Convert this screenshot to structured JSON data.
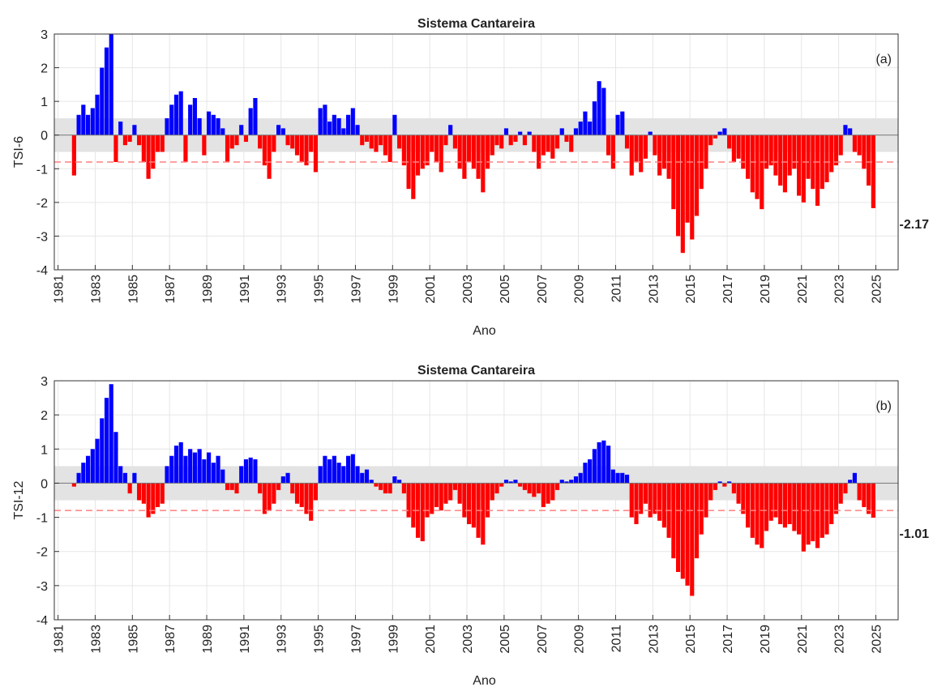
{
  "chart_data": [
    {
      "type": "bar",
      "title": "Sistema Cantareira",
      "ylabel": "TSI-6",
      "xlabel": "Ano",
      "panel_label": "(a)",
      "end_label": "-2.17",
      "positive_color": "#0000ff",
      "negative_color": "#ff0000",
      "band_color": "#e3e3e3",
      "threshold_color": "#ff8080",
      "neutral_band": [
        -0.5,
        0.5
      ],
      "threshold": -0.8,
      "grid": true,
      "xlim": [
        1980.8,
        2026.2
      ],
      "xticks": [
        1981,
        1983,
        1985,
        1987,
        1989,
        1991,
        1993,
        1995,
        1997,
        1999,
        2001,
        2003,
        2005,
        2007,
        2009,
        2011,
        2013,
        2015,
        2017,
        2019,
        2021,
        2023,
        2025
      ],
      "ylim": [
        -4,
        3
      ],
      "yticks": [
        -4,
        -3,
        -2,
        -1,
        0,
        1,
        2,
        3
      ],
      "x": [
        1981.75,
        1982,
        1982.25,
        1982.5,
        1982.75,
        1983,
        1983.25,
        1983.5,
        1983.75,
        1984,
        1984.25,
        1984.5,
        1984.75,
        1985,
        1985.25,
        1985.5,
        1985.75,
        1986,
        1986.25,
        1986.5,
        1986.75,
        1987,
        1987.25,
        1987.5,
        1987.75,
        1988,
        1988.25,
        1988.5,
        1988.75,
        1989,
        1989.25,
        1989.5,
        1989.75,
        1990,
        1990.25,
        1990.5,
        1990.75,
        1991,
        1991.25,
        1991.5,
        1991.75,
        1992,
        1992.25,
        1992.5,
        1992.75,
        1993,
        1993.25,
        1993.5,
        1993.75,
        1994,
        1994.25,
        1994.5,
        1994.75,
        1995,
        1995.25,
        1995.5,
        1995.75,
        1996,
        1996.25,
        1996.5,
        1996.75,
        1997,
        1997.25,
        1997.5,
        1997.75,
        1998,
        1998.25,
        1998.5,
        1998.75,
        1999,
        1999.25,
        1999.5,
        1999.75,
        2000,
        2000.25,
        2000.5,
        2000.75,
        2001,
        2001.25,
        2001.5,
        2001.75,
        2002,
        2002.25,
        2002.5,
        2002.75,
        2003,
        2003.25,
        2003.5,
        2003.75,
        2004,
        2004.25,
        2004.5,
        2004.75,
        2005,
        2005.25,
        2005.5,
        2005.75,
        2006,
        2006.25,
        2006.5,
        2006.75,
        2007,
        2007.25,
        2007.5,
        2007.75,
        2008,
        2008.25,
        2008.5,
        2008.75,
        2009,
        2009.25,
        2009.5,
        2009.75,
        2010,
        2010.25,
        2010.5,
        2010.75,
        2011,
        2011.25,
        2011.5,
        2011.75,
        2012,
        2012.25,
        2012.5,
        2012.75,
        2013,
        2013.25,
        2013.5,
        2013.75,
        2014,
        2014.25,
        2014.5,
        2014.75,
        2015,
        2015.25,
        2015.5,
        2015.75,
        2016,
        2016.25,
        2016.5,
        2016.75,
        2017,
        2017.25,
        2017.5,
        2017.75,
        2018,
        2018.25,
        2018.5,
        2018.75,
        2019,
        2019.25,
        2019.5,
        2019.75,
        2020,
        2020.25,
        2020.5,
        2020.75,
        2021,
        2021.25,
        2021.5,
        2021.75,
        2022,
        2022.25,
        2022.5,
        2022.75,
        2023,
        2023.25,
        2023.5,
        2023.75,
        2024,
        2024.25,
        2024.5,
        2024.75
      ],
      "values": [
        -1.2,
        0.6,
        0.9,
        0.6,
        0.8,
        1.2,
        2.0,
        2.6,
        3.0,
        -0.8,
        0.4,
        -0.3,
        -0.2,
        0.3,
        -0.3,
        -0.8,
        -1.3,
        -1.0,
        -0.5,
        -0.5,
        0.5,
        0.9,
        1.2,
        1.3,
        -0.8,
        0.9,
        1.1,
        0.5,
        -0.6,
        0.7,
        0.6,
        0.5,
        0.2,
        -0.8,
        -0.4,
        -0.3,
        0.3,
        -0.2,
        0.8,
        1.1,
        -0.4,
        -0.9,
        -1.3,
        -0.5,
        0.3,
        0.2,
        -0.3,
        -0.4,
        -0.6,
        -0.8,
        -0.9,
        -0.5,
        -1.1,
        0.8,
        0.9,
        0.4,
        0.6,
        0.5,
        0.2,
        0.6,
        0.8,
        0.3,
        -0.3,
        -0.2,
        -0.4,
        -0.5,
        -0.3,
        -0.6,
        -0.8,
        0.6,
        -0.4,
        -0.9,
        -1.6,
        -1.9,
        -1.2,
        -1.0,
        -0.9,
        -0.5,
        -0.8,
        -1.1,
        -0.3,
        0.3,
        -0.4,
        -1.0,
        -1.3,
        -0.8,
        -1.0,
        -1.3,
        -1.7,
        -1.0,
        -0.6,
        -0.3,
        -0.4,
        0.2,
        -0.3,
        -0.2,
        0.1,
        -0.3,
        0.1,
        -0.5,
        -1.0,
        -0.6,
        -0.5,
        -0.7,
        -0.4,
        0.2,
        -0.2,
        -0.5,
        0.2,
        0.4,
        0.7,
        0.4,
        1.0,
        1.6,
        1.4,
        -0.6,
        -1.0,
        0.6,
        0.7,
        -0.4,
        -1.2,
        -0.8,
        -1.1,
        -0.7,
        0.1,
        -0.6,
        -1.2,
        -1.0,
        -1.3,
        -2.2,
        -3.0,
        -3.5,
        -2.6,
        -3.1,
        -2.4,
        -1.6,
        -1.0,
        -0.3,
        -0.1,
        0.1,
        0.2,
        -0.4,
        -0.8,
        -0.7,
        -1.0,
        -1.3,
        -1.7,
        -1.9,
        -2.2,
        -1.0,
        -0.9,
        -1.2,
        -1.5,
        -1.7,
        -1.2,
        -1.0,
        -1.8,
        -2.0,
        -1.3,
        -1.6,
        -2.1,
        -1.6,
        -1.4,
        -1.1,
        -0.9,
        -0.6,
        0.3,
        0.2,
        -0.5,
        -0.6,
        -1.0,
        -1.5,
        -2.17
      ]
    },
    {
      "type": "bar",
      "title": "Sistema Cantareira",
      "ylabel": "TSI-12",
      "xlabel": "Ano",
      "panel_label": "(b)",
      "end_label": "-1.01",
      "positive_color": "#0000ff",
      "negative_color": "#ff0000",
      "band_color": "#e3e3e3",
      "threshold_color": "#ff8080",
      "neutral_band": [
        -0.5,
        0.5
      ],
      "threshold": -0.8,
      "grid": true,
      "xlim": [
        1980.8,
        2026.2
      ],
      "xticks": [
        1981,
        1983,
        1985,
        1987,
        1989,
        1991,
        1993,
        1995,
        1997,
        1999,
        2001,
        2003,
        2005,
        2007,
        2009,
        2011,
        2013,
        2015,
        2017,
        2019,
        2021,
        2023,
        2025
      ],
      "ylim": [
        -4,
        3
      ],
      "yticks": [
        -4,
        -3,
        -2,
        -1,
        0,
        1,
        2,
        3
      ],
      "x": [
        1981.75,
        1982,
        1982.25,
        1982.5,
        1982.75,
        1983,
        1983.25,
        1983.5,
        1983.75,
        1984,
        1984.25,
        1984.5,
        1984.75,
        1985,
        1985.25,
        1985.5,
        1985.75,
        1986,
        1986.25,
        1986.5,
        1986.75,
        1987,
        1987.25,
        1987.5,
        1987.75,
        1988,
        1988.25,
        1988.5,
        1988.75,
        1989,
        1989.25,
        1989.5,
        1989.75,
        1990,
        1990.25,
        1990.5,
        1990.75,
        1991,
        1991.25,
        1991.5,
        1991.75,
        1992,
        1992.25,
        1992.5,
        1992.75,
        1993,
        1993.25,
        1993.5,
        1993.75,
        1994,
        1994.25,
        1994.5,
        1994.75,
        1995,
        1995.25,
        1995.5,
        1995.75,
        1996,
        1996.25,
        1996.5,
        1996.75,
        1997,
        1997.25,
        1997.5,
        1997.75,
        1998,
        1998.25,
        1998.5,
        1998.75,
        1999,
        1999.25,
        1999.5,
        1999.75,
        2000,
        2000.25,
        2000.5,
        2000.75,
        2001,
        2001.25,
        2001.5,
        2001.75,
        2002,
        2002.25,
        2002.5,
        2002.75,
        2003,
        2003.25,
        2003.5,
        2003.75,
        2004,
        2004.25,
        2004.5,
        2004.75,
        2005,
        2005.25,
        2005.5,
        2005.75,
        2006,
        2006.25,
        2006.5,
        2006.75,
        2007,
        2007.25,
        2007.5,
        2007.75,
        2008,
        2008.25,
        2008.5,
        2008.75,
        2009,
        2009.25,
        2009.5,
        2009.75,
        2010,
        2010.25,
        2010.5,
        2010.75,
        2011,
        2011.25,
        2011.5,
        2011.75,
        2012,
        2012.25,
        2012.5,
        2012.75,
        2013,
        2013.25,
        2013.5,
        2013.75,
        2014,
        2014.25,
        2014.5,
        2014.75,
        2015,
        2015.25,
        2015.5,
        2015.75,
        2016,
        2016.25,
        2016.5,
        2016.75,
        2017,
        2017.25,
        2017.5,
        2017.75,
        2018,
        2018.25,
        2018.5,
        2018.75,
        2019,
        2019.25,
        2019.5,
        2019.75,
        2020,
        2020.25,
        2020.5,
        2020.75,
        2021,
        2021.25,
        2021.5,
        2021.75,
        2022,
        2022.25,
        2022.5,
        2022.75,
        2023,
        2023.25,
        2023.5,
        2023.75,
        2024,
        2024.25,
        2024.5,
        2024.75
      ],
      "values": [
        -0.1,
        0.3,
        0.6,
        0.8,
        1.0,
        1.3,
        1.9,
        2.5,
        2.9,
        1.5,
        0.5,
        0.3,
        -0.3,
        0.3,
        -0.5,
        -0.6,
        -1.0,
        -0.9,
        -0.7,
        -0.6,
        0.5,
        0.8,
        1.1,
        1.2,
        0.8,
        1.0,
        0.9,
        1.0,
        0.7,
        0.9,
        0.6,
        0.8,
        0.4,
        -0.2,
        -0.2,
        -0.3,
        0.5,
        0.7,
        0.75,
        0.7,
        -0.3,
        -0.9,
        -0.8,
        -0.6,
        -0.2,
        0.2,
        0.3,
        -0.3,
        -0.6,
        -0.7,
        -0.9,
        -1.1,
        -0.5,
        0.5,
        0.8,
        0.7,
        0.8,
        0.6,
        0.5,
        0.8,
        0.85,
        0.5,
        0.3,
        0.4,
        0.1,
        -0.1,
        -0.2,
        -0.3,
        -0.3,
        0.2,
        0.1,
        -0.3,
        -1.0,
        -1.3,
        -1.6,
        -1.7,
        -1.0,
        -0.9,
        -0.7,
        -0.8,
        -0.6,
        -0.5,
        -0.2,
        -0.6,
        -1.0,
        -1.2,
        -1.3,
        -1.6,
        -1.8,
        -1.0,
        -0.5,
        -0.3,
        -0.1,
        0.1,
        0.05,
        0.1,
        -0.1,
        -0.2,
        -0.3,
        -0.4,
        -0.3,
        -0.7,
        -0.6,
        -0.5,
        -0.2,
        0.1,
        0.05,
        0.1,
        0.2,
        0.3,
        0.6,
        0.7,
        1.0,
        1.2,
        1.25,
        1.1,
        0.4,
        0.3,
        0.3,
        0.25,
        -1.0,
        -1.2,
        -0.9,
        -0.6,
        -1.0,
        -0.9,
        -1.1,
        -1.3,
        -1.6,
        -2.2,
        -2.6,
        -2.8,
        -3.0,
        -3.3,
        -2.2,
        -1.5,
        -1.0,
        -0.5,
        -0.2,
        0.05,
        -0.1,
        0.05,
        -0.3,
        -0.6,
        -0.9,
        -1.3,
        -1.6,
        -1.8,
        -1.9,
        -1.4,
        -1.1,
        -1.0,
        -1.2,
        -1.3,
        -1.2,
        -1.4,
        -1.5,
        -2.0,
        -1.8,
        -1.7,
        -1.9,
        -1.6,
        -1.5,
        -1.2,
        -0.9,
        -0.6,
        -0.3,
        0.1,
        0.3,
        -0.5,
        -0.7,
        -0.9,
        -1.01
      ]
    }
  ]
}
